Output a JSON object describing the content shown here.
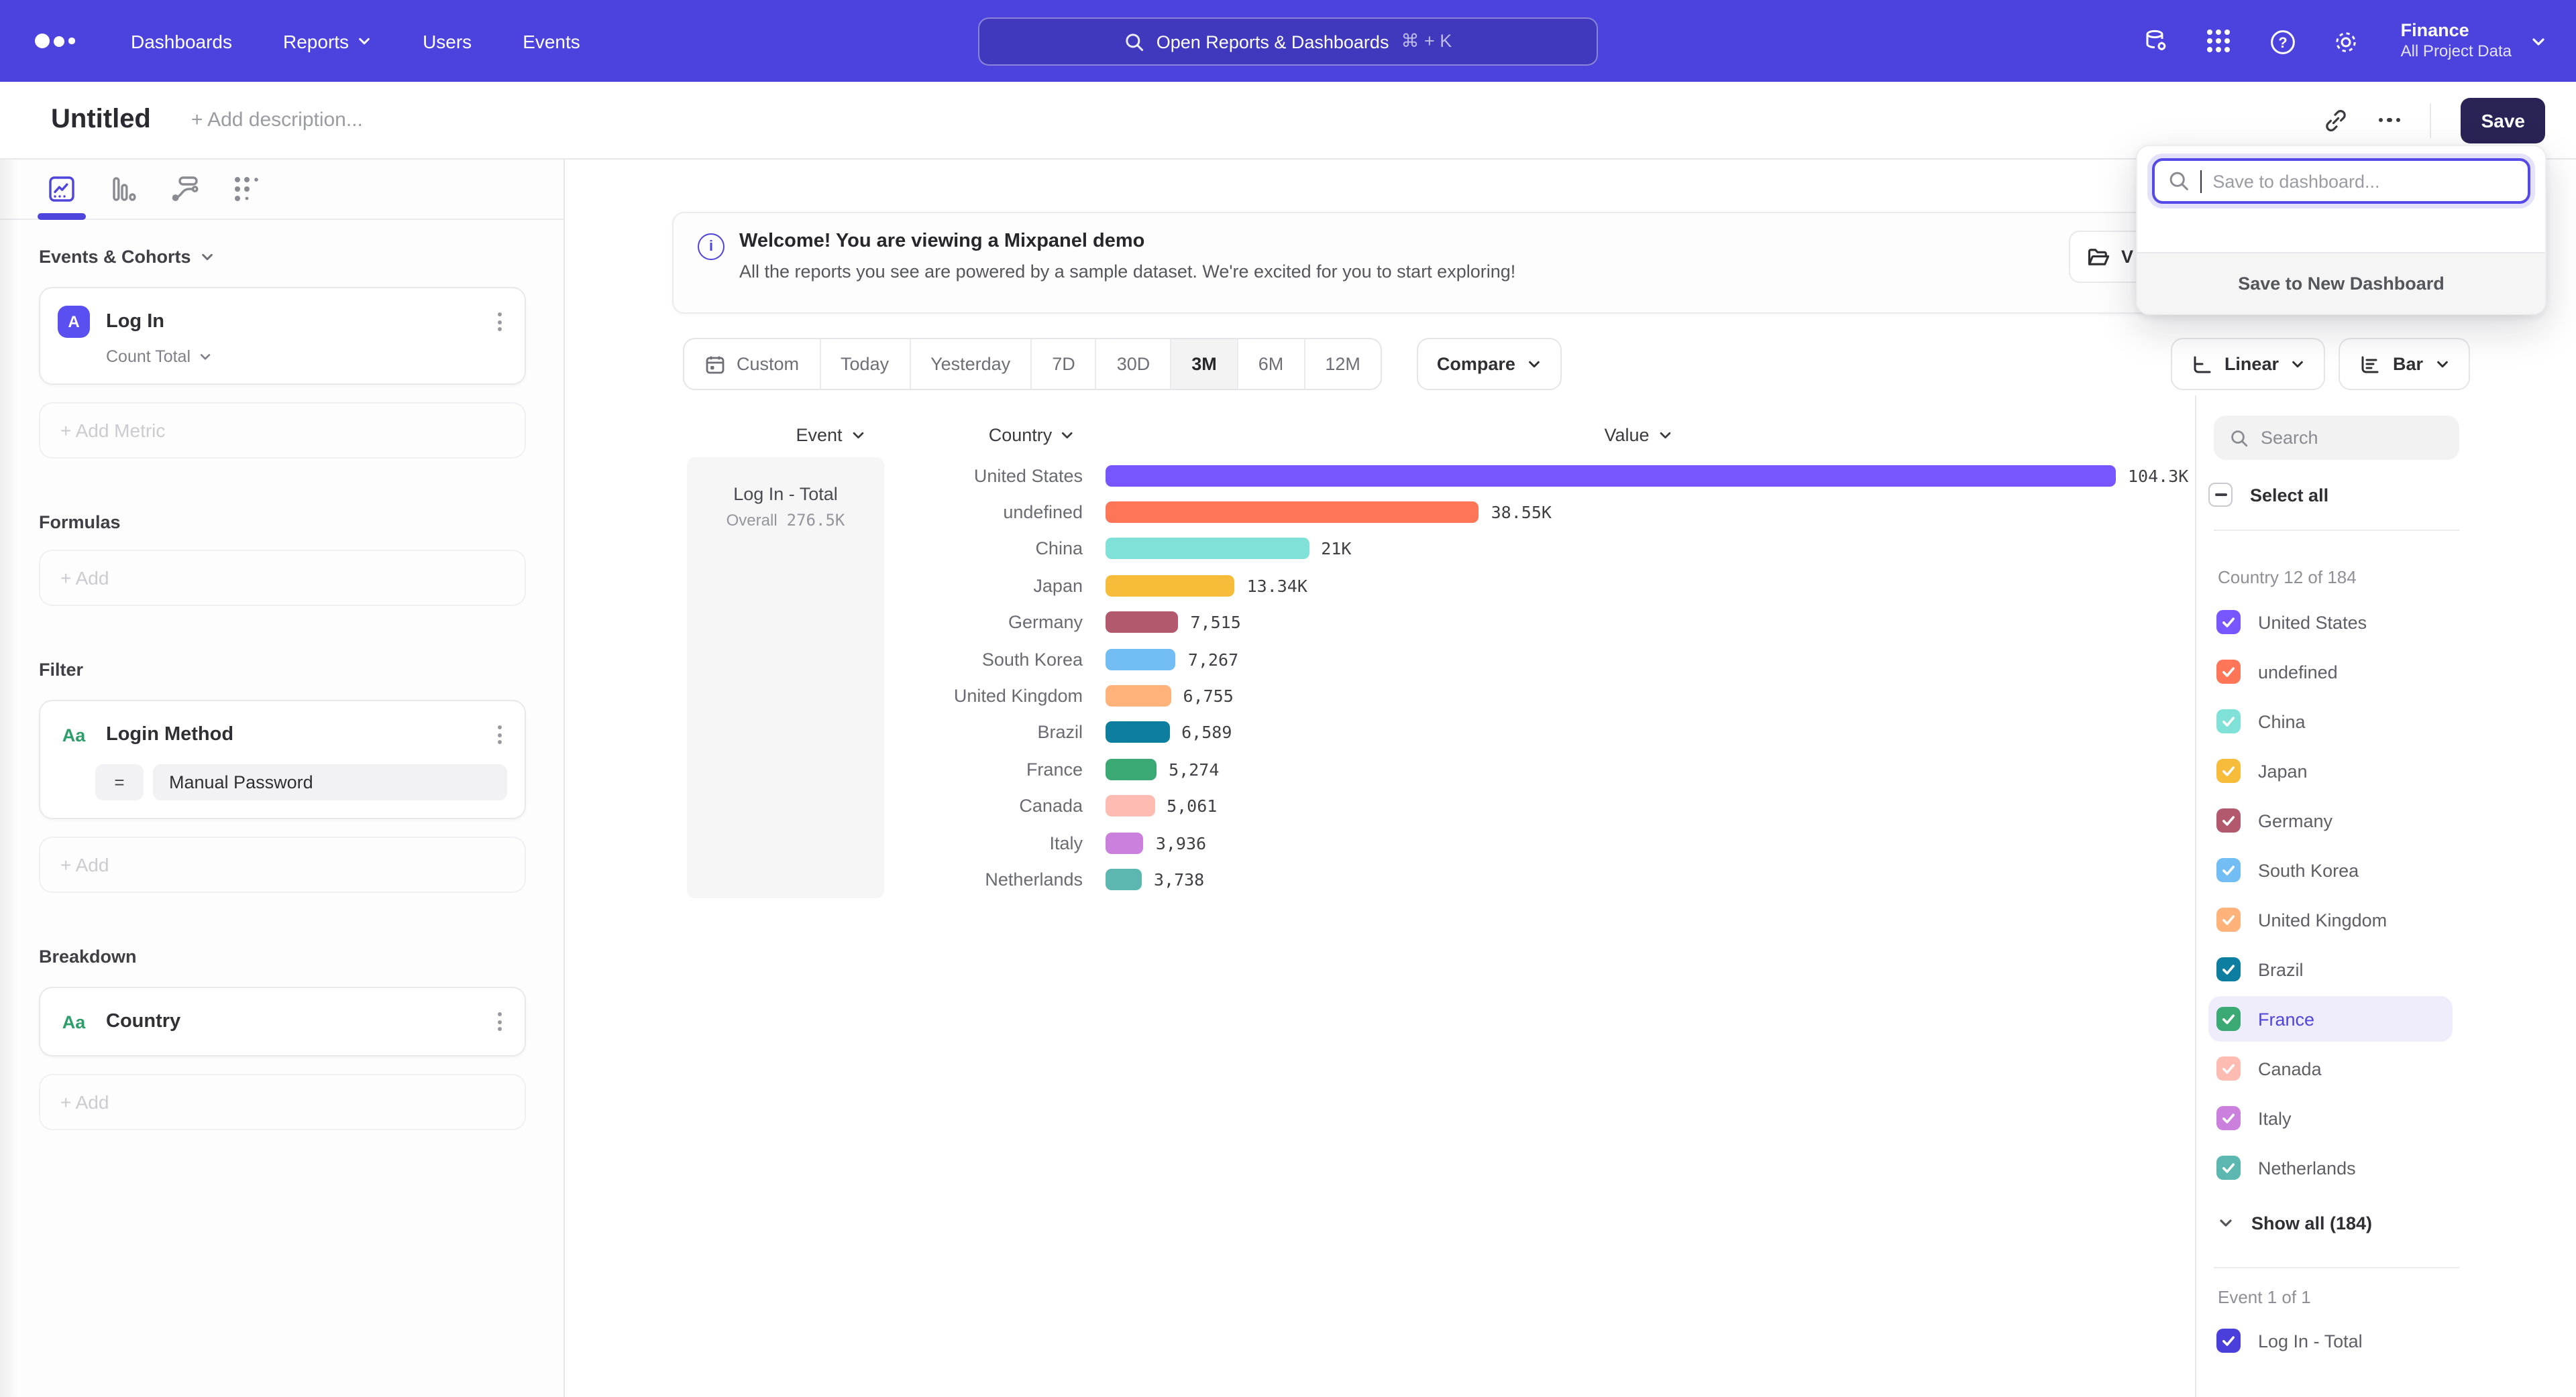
{
  "nav": {
    "items": [
      {
        "label": "Dashboards",
        "chevron": false
      },
      {
        "label": "Reports",
        "chevron": true
      },
      {
        "label": "Users",
        "chevron": false
      },
      {
        "label": "Events",
        "chevron": false
      }
    ],
    "search": {
      "placeholder": "Open Reports & Dashboards",
      "shortcut": "⌘ + K"
    },
    "project": {
      "name": "Finance",
      "workspace": "All Project Data"
    }
  },
  "titlebar": {
    "title": "Untitled",
    "description_placeholder": "+ Add description...",
    "save_label": "Save"
  },
  "save_popover": {
    "search_placeholder": "Save to dashboard...",
    "footer_action": "Save to New Dashboard"
  },
  "sidebar": {
    "events_section": {
      "heading": "Events & Cohorts",
      "metric": {
        "badge": "A",
        "name": "Log In",
        "aggregation": "Count Total"
      },
      "add_label": "+ Add Metric"
    },
    "formulas_section": {
      "heading": "Formulas",
      "add_label": "+ Add"
    },
    "filter_section": {
      "heading": "Filter",
      "filter": {
        "badge": "Aa",
        "name": "Login Method",
        "operator": "=",
        "value": "Manual Password"
      },
      "add_label": "+ Add"
    },
    "breakdown_section": {
      "heading": "Breakdown",
      "breakdown": {
        "badge": "Aa",
        "name": "Country"
      },
      "add_label": "+ Add"
    }
  },
  "banner": {
    "title": "Welcome! You are viewing a Mixpanel demo",
    "subtitle": "All the reports you see are powered by a sample dataset. We're excited for you to start exploring!",
    "button_visible_label": "V"
  },
  "toolbar": {
    "date_ranges": [
      "Custom",
      "Today",
      "Yesterday",
      "7D",
      "30D",
      "3M",
      "6M",
      "12M"
    ],
    "active_range": "3M",
    "compare_label": "Compare",
    "value_scale": "Linear",
    "chart_type": "Bar"
  },
  "chart_data": {
    "type": "bar",
    "orientation": "horizontal",
    "columns": [
      "Event",
      "Country",
      "Value"
    ],
    "series_name": "Log In - Total",
    "overall_label": "Overall",
    "overall_value": "276.5K",
    "categories": [
      "United States",
      "undefined",
      "China",
      "Japan",
      "Germany",
      "South Korea",
      "United Kingdom",
      "Brazil",
      "France",
      "Canada",
      "Italy",
      "Netherlands"
    ],
    "values": [
      104300,
      38550,
      21000,
      13340,
      7515,
      7267,
      6755,
      6589,
      5274,
      5061,
      3936,
      3738
    ],
    "value_labels": [
      "104.3K",
      "38.55K",
      "21K",
      "13.34K",
      "7,515",
      "7,267",
      "6,755",
      "6,589",
      "5,274",
      "5,061",
      "3,936",
      "3,738"
    ],
    "colors": [
      "#7856FF",
      "#FF7557",
      "#80E1D9",
      "#F8BC3B",
      "#B2596E",
      "#72BEF4",
      "#FFB27A",
      "#0D7EA0",
      "#3BA974",
      "#FEBBB2",
      "#CA80DC",
      "#5BB7AF"
    ],
    "xlim": [
      0,
      104300
    ],
    "accent_color": "#4C43DF"
  },
  "right_panel": {
    "search_placeholder": "Search",
    "select_all_label": "Select all",
    "group_label": "Country 12 of 184",
    "countries": [
      {
        "name": "United States",
        "color": "#7856FF",
        "checked": true,
        "highlighted": false
      },
      {
        "name": "undefined",
        "color": "#FF7557",
        "checked": true,
        "highlighted": false
      },
      {
        "name": "China",
        "color": "#80E1D9",
        "checked": true,
        "highlighted": false
      },
      {
        "name": "Japan",
        "color": "#F8BC3B",
        "checked": true,
        "highlighted": false
      },
      {
        "name": "Germany",
        "color": "#B2596E",
        "checked": true,
        "highlighted": false
      },
      {
        "name": "South Korea",
        "color": "#72BEF4",
        "checked": true,
        "highlighted": false
      },
      {
        "name": "United Kingdom",
        "color": "#FFB27A",
        "checked": true,
        "highlighted": false
      },
      {
        "name": "Brazil",
        "color": "#0D7EA0",
        "checked": true,
        "highlighted": false
      },
      {
        "name": "France",
        "color": "#3BA974",
        "checked": true,
        "highlighted": true
      },
      {
        "name": "Canada",
        "color": "#FEBBB2",
        "checked": true,
        "highlighted": false
      },
      {
        "name": "Italy",
        "color": "#CA80DC",
        "checked": true,
        "highlighted": false
      },
      {
        "name": "Netherlands",
        "color": "#5BB7AF",
        "checked": true,
        "highlighted": false
      }
    ],
    "show_all_label": "Show all (184)",
    "event_group_label": "Event 1 of 1",
    "event_item": {
      "name": "Log In - Total",
      "color": "#4A3FDB",
      "checked": true
    }
  }
}
